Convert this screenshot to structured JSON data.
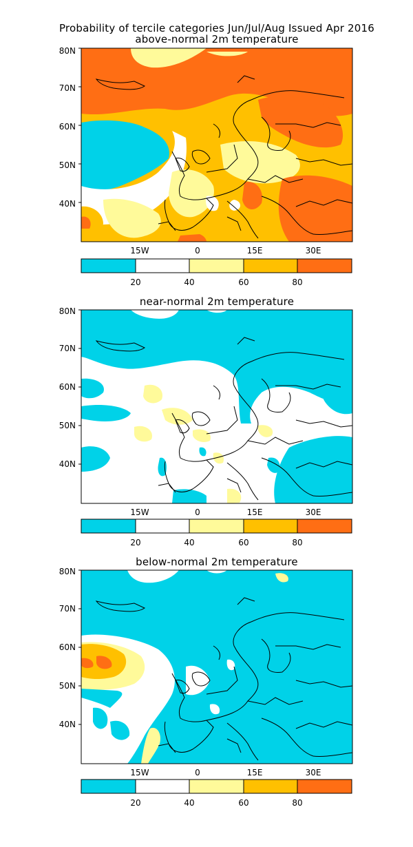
{
  "title": "Probability of tercile categories Jun/Jul/Aug Issued Apr 2016",
  "colors": {
    "cyan": "#00d2e8",
    "white": "#ffffff",
    "lightyellow": "#fffa9a",
    "gold": "#ffc000",
    "orange": "#ff6e14",
    "outline": "#000000"
  },
  "legend": {
    "ticks": [
      "20",
      "40",
      "60",
      "80"
    ],
    "bins": [
      "cyan",
      "white",
      "lightyellow",
      "gold",
      "orange"
    ]
  },
  "axes": {
    "lat_labels": [
      "80N",
      "70N",
      "60N",
      "50N",
      "40N"
    ],
    "lon_labels": [
      "15W",
      "0",
      "15E",
      "30E"
    ]
  },
  "panels": [
    {
      "id": "above",
      "subtitle": "above-normal 2m temperature",
      "dominant": "orange"
    },
    {
      "id": "near",
      "subtitle": "near-normal 2m temperature",
      "dominant": "white"
    },
    {
      "id": "below",
      "subtitle": "below-normal 2m temperature",
      "dominant": "cyan"
    }
  ]
}
